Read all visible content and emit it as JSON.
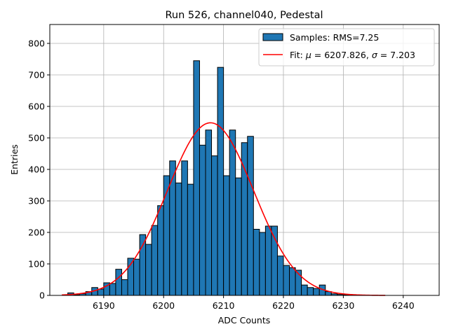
{
  "chart_data": {
    "type": "bar",
    "title": "Run 526, channel040, Pedestal",
    "xlabel": "ADC Counts",
    "ylabel": "Entries",
    "xlim": [
      6181,
      6246
    ],
    "ylim": [
      0,
      860
    ],
    "xticks": [
      6190,
      6200,
      6210,
      6220,
      6230,
      6240
    ],
    "yticks": [
      0,
      100,
      200,
      300,
      400,
      500,
      600,
      700,
      800
    ],
    "grid": true,
    "legend_position": "top-right",
    "bar_color": "#1f77b4",
    "bar_edge_color": "#000000",
    "fit_color": "#ff0000",
    "bin_width": 1,
    "histogram": {
      "name": "Samples: RMS=7.25",
      "bin_left_edges": [
        6183,
        6184,
        6185,
        6186,
        6187,
        6188,
        6189,
        6190,
        6191,
        6192,
        6193,
        6194,
        6195,
        6196,
        6197,
        6198,
        6199,
        6200,
        6201,
        6202,
        6203,
        6204,
        6205,
        6206,
        6207,
        6208,
        6209,
        6210,
        6211,
        6212,
        6213,
        6214,
        6215,
        6216,
        6217,
        6218,
        6219,
        6220,
        6221,
        6222,
        6223,
        6224,
        6225,
        6226,
        6227,
        6228,
        6229,
        6230
      ],
      "counts": [
        0,
        8,
        2,
        5,
        12,
        25,
        20,
        40,
        38,
        83,
        50,
        118,
        115,
        193,
        162,
        222,
        285,
        380,
        427,
        357,
        427,
        353,
        745,
        477,
        525,
        443,
        724,
        380,
        525,
        373,
        485,
        505,
        210,
        200,
        220,
        220,
        125,
        95,
        88,
        80,
        33,
        25,
        22,
        33,
        12,
        5,
        3,
        2
      ]
    },
    "fit": {
      "name": "Fit: $\\mu$ = 6207.826, $\\sigma$ = 7.203",
      "mu": 6207.826,
      "sigma": 7.203,
      "amplitude": 548,
      "x_range": [
        6183,
        6237
      ]
    },
    "legend": {
      "samples_prefix": "Samples: RMS=7.25",
      "fit_prefix": "Fit: ",
      "mu_symbol": "μ",
      "mu_text": " = 6207.826, ",
      "sigma_symbol": "σ",
      "sigma_text": " = 7.203"
    }
  }
}
